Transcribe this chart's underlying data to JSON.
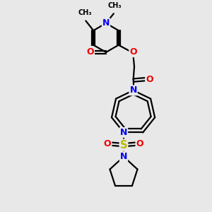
{
  "bg_color": "#e8e8e8",
  "bond_color": "#000000",
  "bond_width": 1.6,
  "atom_colors": {
    "N": "#0000ee",
    "O": "#ee0000",
    "S": "#bbbb00",
    "C": "#000000"
  },
  "font_size": 8.5,
  "fig_size": [
    3.0,
    3.0
  ],
  "dpi": 100,
  "xlim": [
    0,
    10
  ],
  "ylim": [
    0,
    10
  ]
}
